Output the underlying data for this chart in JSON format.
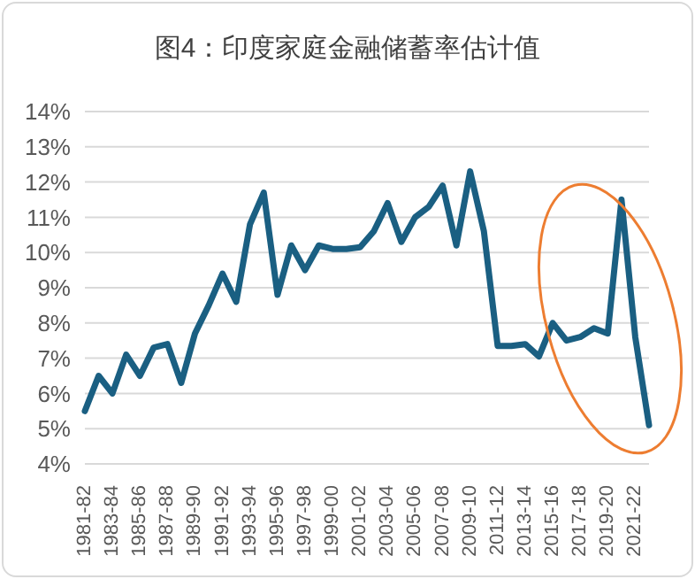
{
  "chart_data": {
    "type": "line",
    "title": "图4：印度家庭金融储蓄率估计值",
    "categories": [
      "1981-82",
      null,
      "1983-84",
      null,
      "1985-86",
      null,
      "1987-88",
      null,
      "1989-90",
      null,
      "1991-92",
      null,
      "1993-94",
      null,
      "1995-96",
      null,
      "1997-98",
      null,
      "1999-00",
      null,
      "2001-02",
      null,
      "2003-04",
      null,
      "2005-06",
      null,
      "2007-08",
      null,
      "2009-10",
      null,
      "2011-12",
      null,
      "2013-14",
      null,
      "2015-16",
      null,
      "2017-18",
      null,
      "2019-20",
      null,
      "2021-22",
      null
    ],
    "series": [
      {
        "color": "#1a5f82",
        "values": [
          5.5,
          6.5,
          6.0,
          7.1,
          6.5,
          7.3,
          7.4,
          6.3,
          7.7,
          8.5,
          9.4,
          8.6,
          10.8,
          11.7,
          8.8,
          10.2,
          9.5,
          10.2,
          10.1,
          10.1,
          10.15,
          10.6,
          11.4,
          10.3,
          11.0,
          11.3,
          11.9,
          10.2,
          12.3,
          10.6,
          7.35,
          7.35,
          7.4,
          7.05,
          8.0,
          7.5,
          7.6,
          7.85,
          7.7,
          11.5,
          7.6,
          5.1
        ]
      }
    ],
    "ylim": [
      4,
      14
    ],
    "yticks": [
      {
        "value": 4,
        "label": "4%"
      },
      {
        "value": 5,
        "label": "5%"
      },
      {
        "value": 6,
        "label": "6%"
      },
      {
        "value": 7,
        "label": "7%"
      },
      {
        "value": 8,
        "label": "8%"
      },
      {
        "value": 9,
        "label": "9%"
      },
      {
        "value": 10,
        "label": "10%"
      },
      {
        "value": 11,
        "label": "11%"
      },
      {
        "value": 12,
        "label": "12%"
      },
      {
        "value": 13,
        "label": "13%"
      },
      {
        "value": 14,
        "label": "14%"
      }
    ],
    "grid": "y",
    "marker": "none",
    "line_style": "solid"
  }
}
